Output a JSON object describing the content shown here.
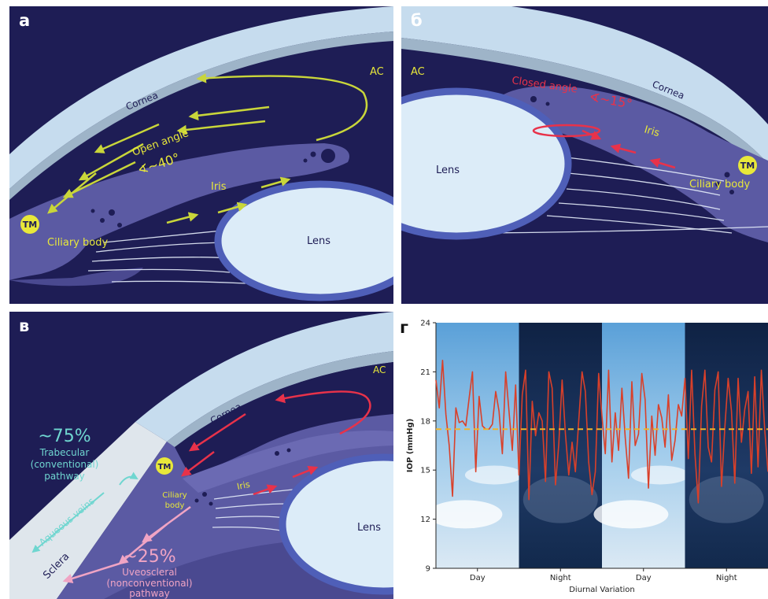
{
  "panels": {
    "a": {
      "label": "а",
      "cornea": "Cornea",
      "ac": "AC",
      "angle_title": "Open angle",
      "angle_value": "∢~40°",
      "iris": "Iris",
      "tm": "TM",
      "ciliary": "Ciliary body",
      "lens": "Lens"
    },
    "b": {
      "label": "б",
      "ac": "AC",
      "angle_title": "Closed angle",
      "angle_value": "∢~15°",
      "cornea": "Cornea",
      "iris": "Iris",
      "lens": "Lens",
      "tm": "TM",
      "ciliary": "Ciliary body"
    },
    "c": {
      "label": "в",
      "ac": "AC",
      "cornea": "Cornea",
      "pct_trab": "~75%",
      "trab_line1": "Trabecular",
      "trab_line2": "(conventional)",
      "trab_line3": "pathway",
      "aqueous": "Aqueous veins",
      "sclera": "Sclera",
      "tm": "TM",
      "iris": "Iris",
      "ciliary_line1": "Ciliary",
      "ciliary_line2": "body",
      "lens": "Lens",
      "pct_uveo": "~25%",
      "uveo_line1": "Uveoscleral",
      "uveo_line2": "(nonconventional)",
      "uveo_line3": "pathway"
    },
    "d": {
      "label": "г"
    }
  },
  "colors": {
    "background": "#1e1d55",
    "cornea": "#c6dcee",
    "tissue": "#5b5aa3",
    "lens": "#dcecf8",
    "yellow": "#e8e83a",
    "flow_green": "#c9d63a",
    "flow_red": "#e8324a",
    "flow_pink": "#f0a4c4",
    "teal": "#6fd6d0",
    "iop_line": "#d9402a",
    "mean_line": "#f0b32a"
  },
  "chart_data": {
    "type": "line",
    "title": "",
    "xlabel": "Diurnal Variation",
    "ylabel": "IOP (mmHg)",
    "ylim": [
      9,
      24
    ],
    "yticks": [
      9,
      12,
      15,
      18,
      21,
      24
    ],
    "xticks": [
      "Day",
      "Night",
      "Day",
      "Night"
    ],
    "period_shading": [
      "day",
      "night",
      "day",
      "night"
    ],
    "mean_line": 17.5,
    "series": [
      {
        "x": [
          0,
          0.01,
          0.02,
          0.03,
          0.04,
          0.05,
          0.06,
          0.07,
          0.08,
          0.09,
          0.1,
          0.11,
          0.12,
          0.13,
          0.14,
          0.15,
          0.16,
          0.17,
          0.18,
          0.19,
          0.2,
          0.21,
          0.22,
          0.23,
          0.24,
          0.25,
          0.26,
          0.27,
          0.28,
          0.29,
          0.3,
          0.31,
          0.32,
          0.33,
          0.34,
          0.35,
          0.36,
          0.37,
          0.38,
          0.39,
          0.4,
          0.41,
          0.42,
          0.43,
          0.44,
          0.45,
          0.46,
          0.47,
          0.48,
          0.49,
          0.5,
          0.51,
          0.52,
          0.53,
          0.54,
          0.55,
          0.56,
          0.57,
          0.58,
          0.59,
          0.6,
          0.61,
          0.62,
          0.63,
          0.64,
          0.65,
          0.66,
          0.67,
          0.68,
          0.69,
          0.7,
          0.71,
          0.72,
          0.73,
          0.74,
          0.75,
          0.76,
          0.77,
          0.78,
          0.79,
          0.8,
          0.81,
          0.82,
          0.83,
          0.84,
          0.85,
          0.86,
          0.87,
          0.88,
          0.89,
          0.9,
          0.91,
          0.92,
          0.93,
          0.94,
          0.95,
          0.96,
          0.97,
          0.98,
          0.99,
          1.0
        ],
        "values": [
          20.5,
          18.8,
          21.7,
          18.4,
          16.5,
          13.4,
          18.8,
          17.9,
          18.0,
          17.7,
          19.4,
          21.0,
          14.9,
          19.5,
          17.7,
          17.5,
          17.5,
          17.8,
          19.8,
          18.6,
          16.0,
          21.0,
          18.6,
          16.2,
          20.2,
          14.7,
          19.6,
          21.1,
          13.2,
          19.2,
          17.1,
          18.5,
          18.0,
          14.3,
          21.0,
          20.0,
          14.1,
          16.6,
          20.5,
          17.2,
          14.7,
          16.7,
          14.9,
          18.0,
          21.0,
          19.8,
          15.5,
          13.5,
          14.9,
          20.9,
          18.3,
          16.0,
          21.1,
          15.5,
          18.5,
          16.2,
          20.0,
          17.0,
          14.5,
          20.4,
          16.5,
          17.2,
          20.9,
          19.3,
          13.9,
          18.3,
          15.9,
          19.0,
          18.2,
          16.4,
          19.6,
          15.6,
          16.8,
          19.0,
          18.3,
          20.6,
          15.7,
          21.1,
          16.0,
          13.0,
          18.9,
          21.1,
          16.4,
          15.5,
          19.9,
          21.0,
          14.0,
          17.6,
          20.6,
          18.6,
          14.2,
          20.6,
          16.7,
          18.7,
          19.8,
          14.8,
          20.7,
          15.2,
          21.1,
          17.5,
          14.9
        ]
      }
    ]
  }
}
